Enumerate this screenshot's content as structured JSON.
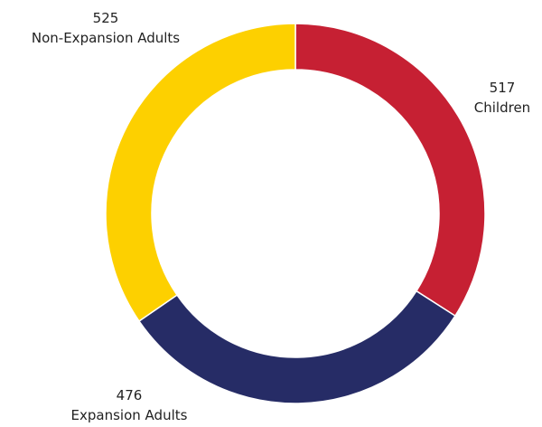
{
  "chart_data": {
    "type": "pie",
    "variant": "donut",
    "title": "",
    "legend": "none",
    "categories": [
      "Children",
      "Expansion Adults",
      "Non-Expansion Adults"
    ],
    "values": [
      517,
      476,
      525
    ],
    "colors": [
      "#C62033",
      "#262C66",
      "#FDD000"
    ],
    "data_labels": [
      {
        "value": "517",
        "name": "Children"
      },
      {
        "value": "476",
        "name": "Expansion Adults"
      },
      {
        "value": "525",
        "name": "Non-Expansion Adults"
      }
    ]
  }
}
